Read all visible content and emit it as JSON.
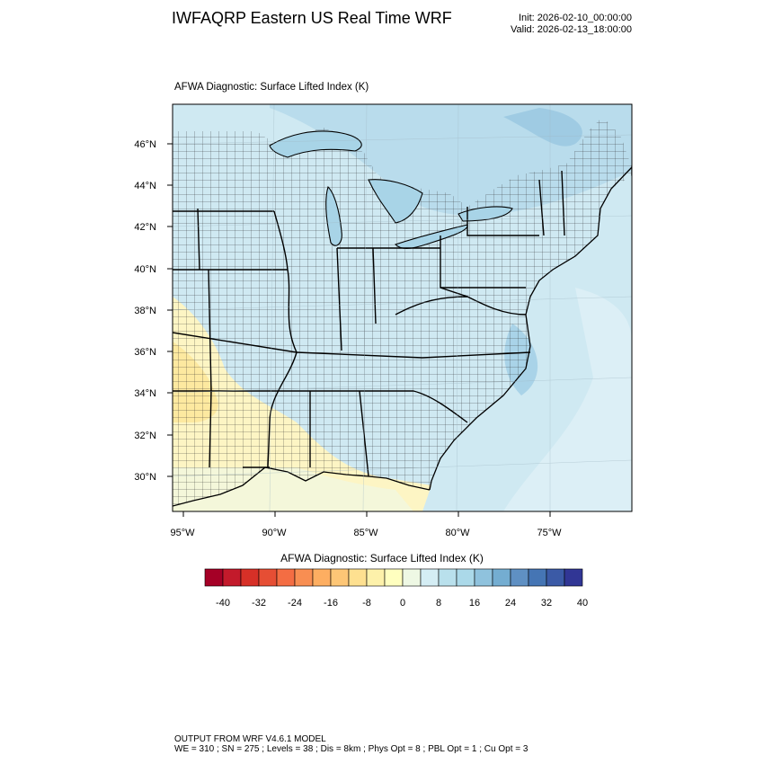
{
  "header": {
    "title": "IWFAQRP Eastern US Real Time WRF",
    "init": "Init: 2026-02-10_00:00:00",
    "valid": "Valid: 2026-02-13_18:00:00"
  },
  "plot": {
    "subtitle": "AFWA Diagnostic: Surface Lifted Index   (K)",
    "lat_labels": [
      "46°N",
      "44°N",
      "42°N",
      "40°N",
      "38°N",
      "36°N",
      "34°N",
      "32°N",
      "30°N"
    ],
    "lon_labels": [
      "95°W",
      "90°W",
      "85°W",
      "80°W",
      "75°W"
    ]
  },
  "colorbar": {
    "title": "AFWA Diagnostic: Surface Lifted Index  (K)",
    "labels": [
      "-40",
      "-32",
      "-24",
      "-16",
      "-8",
      "0",
      "8",
      "16",
      "24",
      "32",
      "40"
    ],
    "colors": [
      "#a50026",
      "#c31a2b",
      "#d73027",
      "#e64e34",
      "#f46d43",
      "#f88e52",
      "#fdae61",
      "#fdc676",
      "#fee090",
      "#fdf1aa",
      "#ffffbf",
      "#eef8e4",
      "#d4edf4",
      "#b9e0ec",
      "#abd9e9",
      "#8fc2dd",
      "#74add1",
      "#5f90c3",
      "#4575b4",
      "#3b5aa6",
      "#313695"
    ]
  },
  "footer": {
    "line1": "OUTPUT FROM WRF V4.6.1 MODEL",
    "line2": "WE = 310 ; SN = 275 ; Levels = 38 ; Dis = 8km ; Phys Opt = 8 ; PBL Opt = 1 ; Cu Opt = 3"
  }
}
